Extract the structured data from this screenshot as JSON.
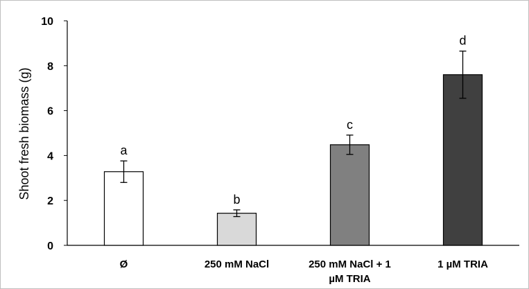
{
  "chart_data": {
    "type": "bar",
    "ylabel": "Shoot fresh biomass (g)",
    "ylim": [
      0,
      10
    ],
    "yticks": [
      0,
      2,
      4,
      6,
      8,
      10
    ],
    "grid": false,
    "legend": "none",
    "categories": [
      "Ø",
      "250 mM NaCl",
      "250 mM NaCl + 1 µM TRIA",
      "1 µM TRIA"
    ],
    "category_lines": [
      [
        "Ø"
      ],
      [
        "250 mM NaCl"
      ],
      [
        "250 mM NaCl + 1",
        "µM TRIA"
      ],
      [
        "1 µM TRIA"
      ]
    ],
    "values": [
      3.28,
      1.43,
      4.48,
      7.6
    ],
    "errors": [
      0.48,
      0.15,
      0.43,
      1.05
    ],
    "significance": [
      "a",
      "b",
      "c",
      "d"
    ],
    "colors": [
      "#ffffff",
      "#d9d9d9",
      "#808080",
      "#404040"
    ]
  }
}
